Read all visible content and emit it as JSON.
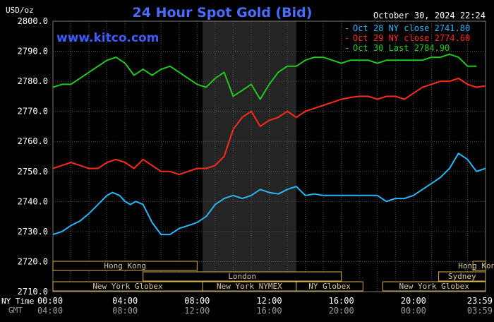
{
  "chart_data": {
    "type": "line",
    "title": "24 Hour Spot Gold (Bid)",
    "unit_label": "USD/oz",
    "date_label": "October 30, 2024 22:24",
    "watermark": "www.kitco.com",
    "ylim": [
      2710,
      2800
    ],
    "y_ticks": [
      "2800.0",
      "2790.0",
      "2780.0",
      "2770.0",
      "2760.0",
      "2750.0",
      "2740.0",
      "2730.0",
      "2720.0",
      "2710.0"
    ],
    "x_ticks": [
      {
        "hour": 0,
        "ny": "00:00",
        "gmt": "04:00"
      },
      {
        "hour": 4,
        "ny": "04:00",
        "gmt": "08:00"
      },
      {
        "hour": 8,
        "ny": "08:00",
        "gmt": "12:00"
      },
      {
        "hour": 12,
        "ny": "12:00",
        "gmt": "16:00"
      },
      {
        "hour": 16,
        "ny": "16:00",
        "gmt": "20:00"
      },
      {
        "hour": 20,
        "ny": "20:00",
        "gmt": "00:00"
      },
      {
        "hour": 24,
        "ny": "23:59",
        "gmt": "03:59"
      }
    ],
    "x_axis_labels": {
      "ny": "NY Time",
      "gmt": "GMT"
    },
    "shaded_period": [
      8.3,
      13.5
    ],
    "grid": true,
    "legend_position": "top-right",
    "series": [
      {
        "name": "Oct 28 NY close 2741.80",
        "color": "#29b6f6",
        "x": [
          0,
          0.5,
          1,
          1.5,
          2,
          2.5,
          3,
          3.3,
          3.7,
          4,
          4.3,
          4.6,
          5,
          5.5,
          6,
          6.5,
          7,
          7.5,
          8,
          8.5,
          9,
          9.5,
          10,
          10.5,
          11,
          11.5,
          12,
          12.5,
          13,
          13.5,
          14,
          14.5,
          15,
          16,
          17,
          18,
          18.5,
          19,
          19.5,
          20,
          20.5,
          21,
          21.5,
          22,
          22.5,
          23,
          23.5,
          24
        ],
        "y": [
          2729,
          2730,
          2732,
          2733.5,
          2736,
          2739,
          2742,
          2743,
          2742,
          2740,
          2739,
          2740,
          2739,
          2733,
          2729,
          2729,
          2731,
          2732,
          2733,
          2735,
          2739,
          2741,
          2742,
          2741,
          2742,
          2744,
          2743,
          2742.5,
          2744,
          2745,
          2742,
          2742.5,
          2742,
          2742,
          2742,
          2742,
          2740,
          2741,
          2741,
          2742,
          2744,
          2746,
          2748,
          2751,
          2756,
          2754,
          2750,
          2751
        ]
      },
      {
        "name": "Oct 29 NY close 2774.60",
        "color": "#ff2a1a",
        "x": [
          0,
          0.5,
          1,
          1.5,
          2,
          2.5,
          3,
          3.5,
          4,
          4.5,
          5,
          5.5,
          6,
          6.5,
          7,
          7.5,
          8,
          8.5,
          9,
          9.5,
          10,
          10.5,
          11,
          11.5,
          12,
          12.5,
          13,
          13.5,
          14,
          14.5,
          15,
          15.5,
          16,
          16.5,
          17,
          17.5,
          18,
          18.5,
          19,
          19.5,
          20,
          20.5,
          21,
          21.5,
          22,
          22.5,
          23,
          23.5,
          24
        ],
        "y": [
          2751,
          2752,
          2753,
          2752,
          2751,
          2751,
          2753,
          2754,
          2753,
          2751,
          2754,
          2752,
          2750,
          2750,
          2749,
          2750,
          2751,
          2751,
          2752,
          2755,
          2764,
          2768,
          2770,
          2765,
          2767,
          2768,
          2770,
          2768,
          2770,
          2771,
          2772,
          2773,
          2774,
          2774.6,
          2775,
          2775,
          2774,
          2775,
          2775,
          2774,
          2776,
          2778,
          2779,
          2780,
          2780,
          2781,
          2779,
          2778,
          2778.5
        ]
      },
      {
        "name": "Oct 30 Last 2784.90",
        "color": "#22c81e",
        "x": [
          0,
          0.5,
          1,
          1.5,
          2,
          2.5,
          3,
          3.5,
          4,
          4.5,
          5,
          5.5,
          6,
          6.5,
          7,
          7.5,
          8,
          8.5,
          9,
          9.5,
          10,
          10.5,
          11,
          11.5,
          12,
          12.5,
          13,
          13.5,
          14,
          14.5,
          15,
          15.5,
          16,
          16.5,
          17,
          17.5,
          18,
          18.5,
          19,
          19.5,
          20,
          20.5,
          21,
          21.5,
          22,
          22.5,
          23,
          23.5
        ],
        "y": [
          2778,
          2779,
          2779,
          2781,
          2783,
          2785,
          2787,
          2788,
          2786,
          2782,
          2784,
          2782,
          2784,
          2785,
          2783,
          2781,
          2779,
          2778,
          2781,
          2783,
          2775,
          2777,
          2779,
          2774,
          2779,
          2783,
          2785,
          2785,
          2787,
          2788,
          2788,
          2787,
          2786,
          2787,
          2787,
          2787,
          2786,
          2787,
          2787,
          2787,
          2787,
          2787,
          2788,
          2788,
          2789,
          2788,
          2785,
          2785
        ]
      }
    ],
    "sessions": [
      {
        "label": "Hong Kong",
        "row": 0,
        "start": 0,
        "end": 8
      },
      {
        "label": "Hong Kong",
        "row": 0,
        "start": 23.3,
        "end": 25
      },
      {
        "label": "Sydney",
        "row": 1,
        "start": 21.4,
        "end": 25
      },
      {
        "label": "London",
        "row": 1,
        "start": 5,
        "end": 16
      },
      {
        "label": "New York Globex",
        "row": 2,
        "start": 0,
        "end": 8.3
      },
      {
        "label": "New York NYMEX",
        "row": 2,
        "start": 8.3,
        "end": 13.5
      },
      {
        "label": "NY Globex",
        "row": 2,
        "start": 13.5,
        "end": 17.2
      },
      {
        "label": "New York Globex",
        "row": 2,
        "start": 18.3,
        "end": 25
      }
    ]
  }
}
